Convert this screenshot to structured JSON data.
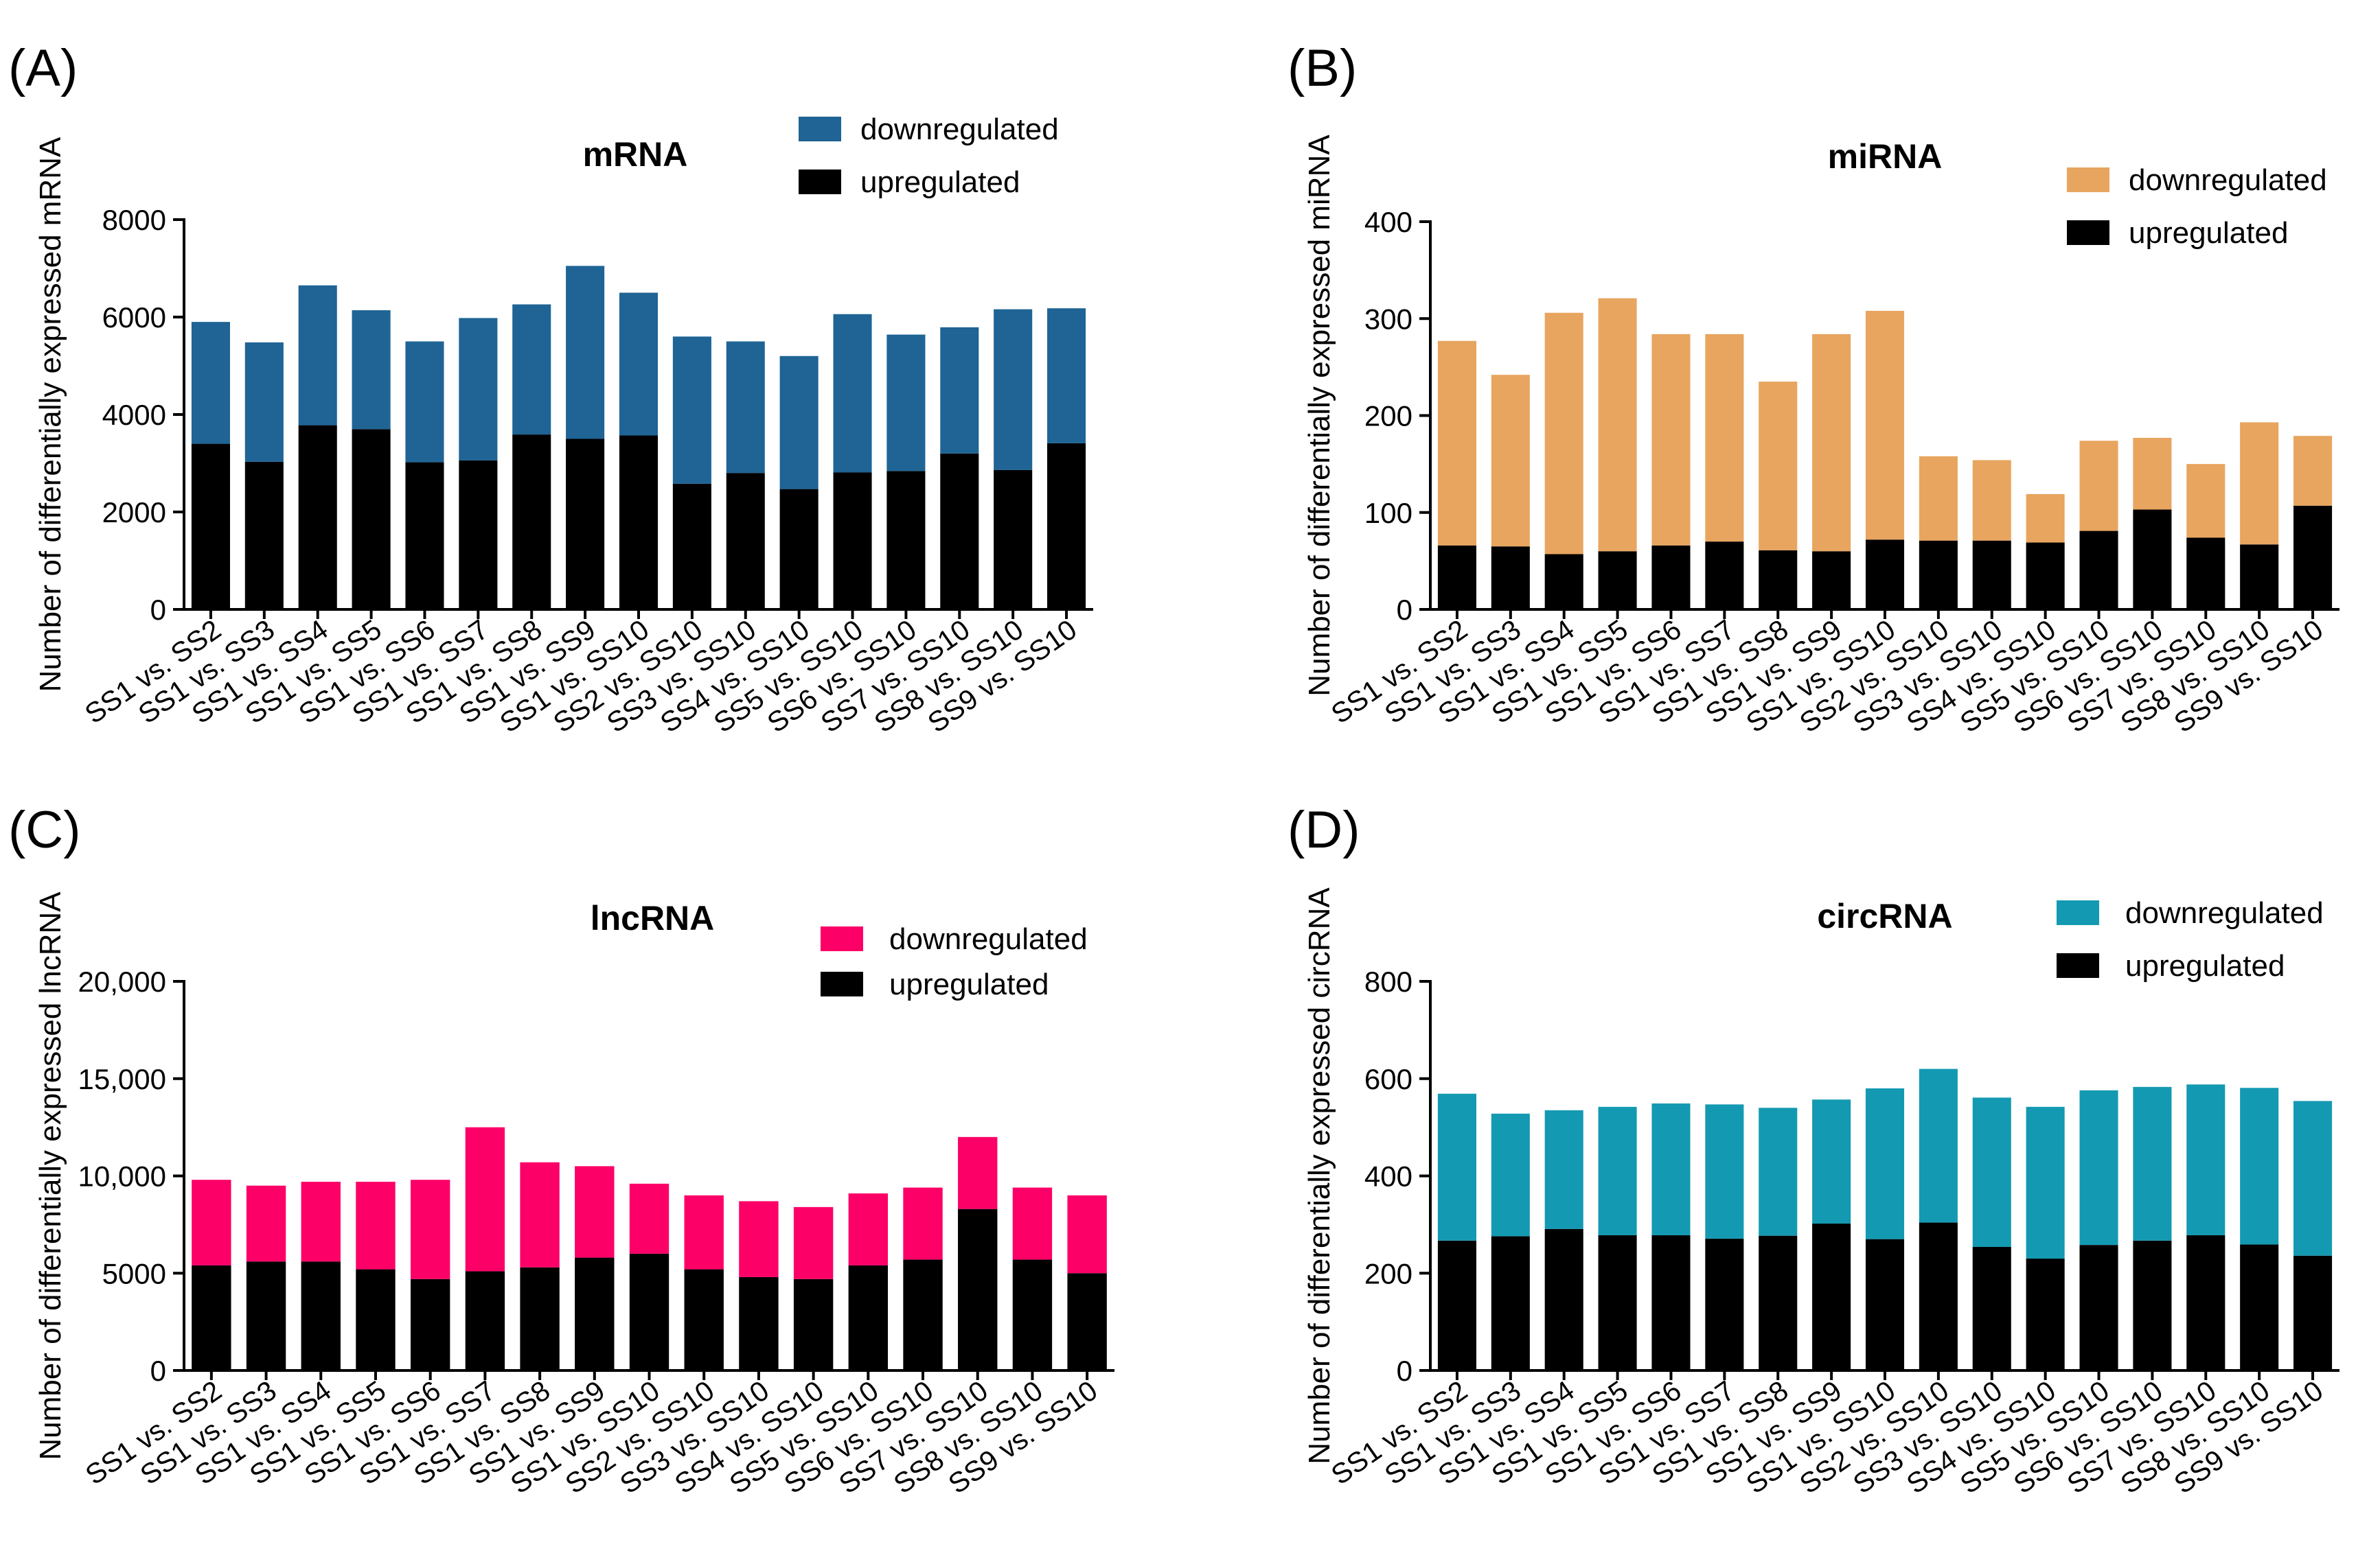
{
  "chart_data": [
    {
      "type": "bar",
      "stacked": true,
      "panel_label": "(A)",
      "title": "mRNA",
      "xlabel": "",
      "ylabel": "Number of differentially expressed mRNA",
      "ylim": [
        0,
        8000
      ],
      "yticks": [
        0,
        2000,
        4000,
        6000,
        8000
      ],
      "ytick_labels": [
        "0",
        "2000",
        "4000",
        "6000",
        "8000"
      ],
      "legend_position": "top-right",
      "categories": [
        "SS1 vs. SS2",
        "SS1 vs. SS3",
        "SS1 vs. SS4",
        "SS1 vs. SS5",
        "SS1 vs. SS6",
        "SS1 vs. SS7",
        "SS1 vs. SS8",
        "SS1 vs. SS9",
        "SS1 vs. SS10",
        "SS2 vs. SS10",
        "SS3 vs. SS10",
        "SS4 vs. SS10",
        "SS5 vs. SS10",
        "SS6 vs. SS10",
        "SS7 vs. SS10",
        "SS8 vs. SS10",
        "SS9 vs. SS10"
      ],
      "series": [
        {
          "name": "downregulated",
          "color": "#1f6495",
          "values": [
            2500,
            2450,
            2870,
            2440,
            2480,
            2920,
            2670,
            3550,
            2930,
            3020,
            2700,
            2730,
            3250,
            2800,
            2590,
            3300,
            2770
          ]
        },
        {
          "name": "upregulated",
          "color": "#000000",
          "values": [
            3400,
            3030,
            3780,
            3700,
            3020,
            3060,
            3590,
            3500,
            3570,
            2580,
            2800,
            2470,
            2810,
            2840,
            3200,
            2860,
            3410
          ]
        }
      ]
    },
    {
      "type": "bar",
      "stacked": true,
      "panel_label": "(B)",
      "title": "miRNA",
      "xlabel": "",
      "ylabel": "Number of differentially expressed miRNA",
      "ylim": [
        0,
        400
      ],
      "yticks": [
        0,
        100,
        200,
        300,
        400
      ],
      "ytick_labels": [
        "0",
        "100",
        "200",
        "300",
        "400"
      ],
      "legend_position": "top-right",
      "categories": [
        "SS1 vs. SS2",
        "SS1 vs. SS3",
        "SS1 vs. SS4",
        "SS1 vs. SS5",
        "SS1 vs. SS6",
        "SS1 vs. SS7",
        "SS1 vs. SS8",
        "SS1 vs. SS9",
        "SS1 vs. SS10",
        "SS2 vs. SS10",
        "SS3 vs. SS10",
        "SS4 vs. SS10",
        "SS5 vs. SS10",
        "SS6 vs. SS10",
        "SS7 vs. SS10",
        "SS8 vs. SS10",
        "SS9 vs. SS10"
      ],
      "series": [
        {
          "name": "downregulated",
          "color": "#e8a55f",
          "values": [
            211,
            177,
            249,
            261,
            218,
            214,
            174,
            224,
            236,
            87,
            83,
            50,
            93,
            74,
            76,
            126,
            72
          ]
        },
        {
          "name": "upregulated",
          "color": "#000000",
          "values": [
            66,
            65,
            57,
            60,
            66,
            70,
            61,
            60,
            72,
            71,
            71,
            69,
            81,
            103,
            74,
            67,
            107
          ]
        }
      ]
    },
    {
      "type": "bar",
      "stacked": true,
      "panel_label": "(C)",
      "title": "lncRNA",
      "xlabel": "",
      "ylabel": "Number of differentially expressed lncRNA",
      "ylim": [
        0,
        20000
      ],
      "yticks": [
        0,
        5000,
        10000,
        15000,
        20000
      ],
      "ytick_labels": [
        "0",
        "5000",
        "10,000",
        "15,000",
        "20,000"
      ],
      "legend_position": "top-right",
      "categories": [
        "SS1 vs. SS2",
        "SS1 vs. SS3",
        "SS1 vs. SS4",
        "SS1 vs. SS5",
        "SS1 vs. SS6",
        "SS1 vs. SS7",
        "SS1 vs. SS8",
        "SS1 vs. SS9",
        "SS1 vs. SS10",
        "SS2 vs. SS10",
        "SS3 vs. SS10",
        "SS4 vs. SS10",
        "SS5 vs. SS10",
        "SS6 vs. SS10",
        "SS7 vs. SS10",
        "SS8 vs. SS10",
        "SS9 vs. SS10"
      ],
      "series": [
        {
          "name": "downregulated",
          "color": "#fc0068",
          "values": [
            4400,
            3900,
            4100,
            4500,
            5100,
            7400,
            5400,
            4700,
            3600,
            3800,
            3900,
            3700,
            3700,
            3700,
            3700,
            3700,
            4000
          ]
        },
        {
          "name": "upregulated",
          "color": "#000000",
          "values": [
            5400,
            5600,
            5600,
            5200,
            4700,
            5100,
            5300,
            5800,
            6000,
            5200,
            4800,
            4700,
            5400,
            5700,
            8300,
            5700,
            5000
          ]
        }
      ]
    },
    {
      "type": "bar",
      "stacked": true,
      "panel_label": "(D)",
      "title": "circRNA",
      "xlabel": "",
      "ylabel": "Number of differentially expressed circRNA",
      "ylim": [
        0,
        800
      ],
      "yticks": [
        0,
        200,
        400,
        600,
        800
      ],
      "ytick_labels": [
        "0",
        "200",
        "400",
        "600",
        "800"
      ],
      "legend_position": "top-right",
      "categories": [
        "SS1 vs. SS2",
        "SS1 vs. SS3",
        "SS1 vs. SS4",
        "SS1 vs. SS5",
        "SS1 vs. SS6",
        "SS1 vs. SS7",
        "SS1 vs. SS8",
        "SS1 vs. SS9",
        "SS1 vs. SS10",
        "SS2 vs. SS10",
        "SS3 vs. SS10",
        "SS4 vs. SS10",
        "SS5 vs. SS10",
        "SS6 vs. SS10",
        "SS7 vs. SS10",
        "SS8 vs. SS10",
        "SS9 vs. SS10"
      ],
      "series": [
        {
          "name": "downregulated",
          "color": "#1499b2",
          "values": [
            302,
            252,
            244,
            264,
            271,
            276,
            263,
            255,
            310,
            316,
            307,
            312,
            318,
            316,
            310,
            322,
            318
          ]
        },
        {
          "name": "upregulated",
          "color": "#000000",
          "values": [
            267,
            276,
            291,
            278,
            278,
            271,
            277,
            302,
            270,
            304,
            254,
            230,
            258,
            267,
            278,
            259,
            236
          ]
        }
      ]
    }
  ]
}
